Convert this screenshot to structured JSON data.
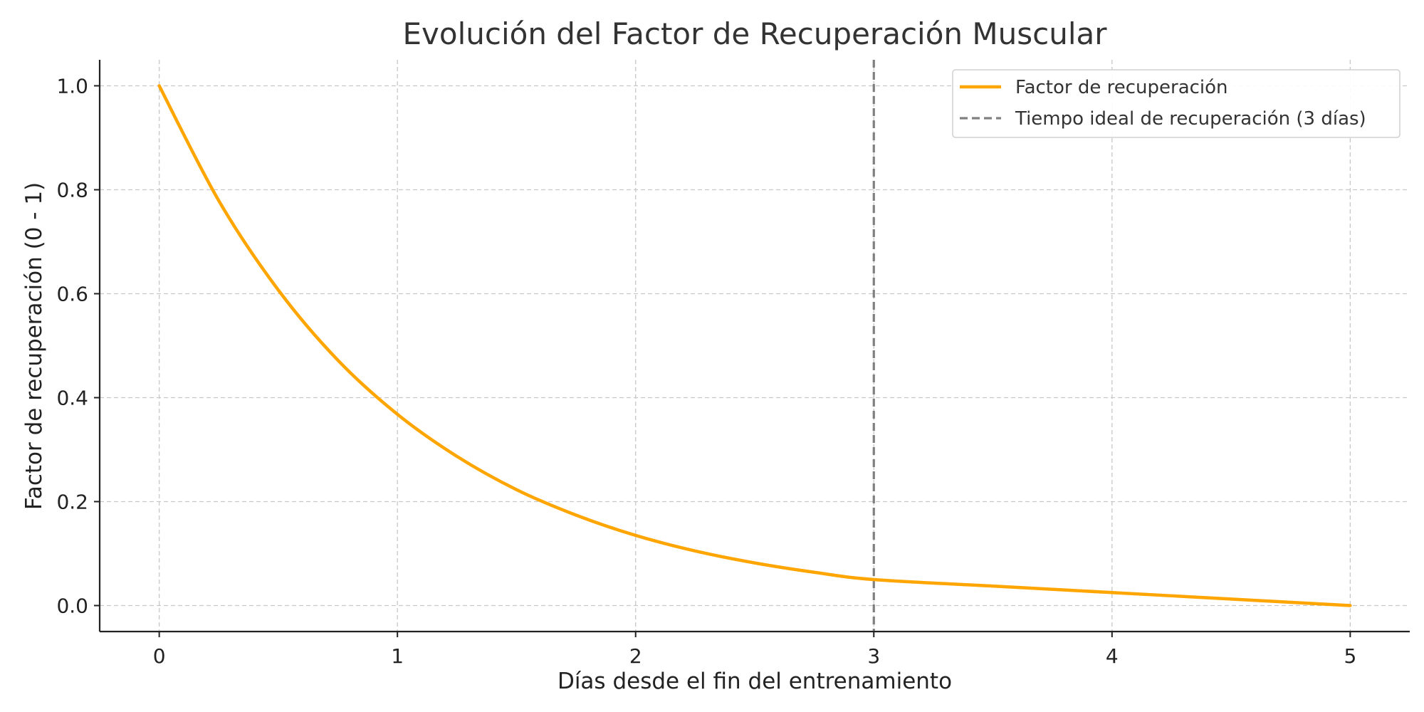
{
  "chart_data": {
    "type": "line",
    "title": "Evolución del Factor de Recuperación Muscular",
    "xlabel": "Días desde el fin del entrenamiento",
    "ylabel": "Factor de recuperación (0 - 1)",
    "xlim": [
      -0.25,
      5.25
    ],
    "ylim": [
      -0.05,
      1.05
    ],
    "x_ticks": [
      0,
      1,
      2,
      3,
      4,
      5
    ],
    "y_ticks": [
      0.0,
      0.2,
      0.4,
      0.6,
      0.8,
      1.0
    ],
    "x_tick_labels": [
      "0",
      "1",
      "2",
      "3",
      "4",
      "5"
    ],
    "y_tick_labels": [
      "0.0",
      "0.2",
      "0.4",
      "0.6",
      "0.8",
      "1.0"
    ],
    "grid": true,
    "legend_position": "top-right",
    "series": [
      {
        "name": "Factor de recuperación",
        "color": "#FFA500",
        "style": "solid",
        "x": [
          0,
          0.25,
          0.5,
          0.75,
          1.0,
          1.25,
          1.5,
          1.75,
          2.0,
          2.25,
          2.5,
          2.75,
          3.0,
          3.5,
          4.0,
          4.5,
          5.0
        ],
        "y": [
          1.0,
          0.779,
          0.607,
          0.472,
          0.368,
          0.287,
          0.223,
          0.174,
          0.135,
          0.105,
          0.082,
          0.064,
          0.05,
          0.0375,
          0.025,
          0.0125,
          0.0
        ]
      }
    ],
    "reference_lines": [
      {
        "name": "Tiempo ideal de recuperación (3 días)",
        "orientation": "vertical",
        "x": 3,
        "color": "#808080",
        "style": "dashed"
      }
    ]
  }
}
